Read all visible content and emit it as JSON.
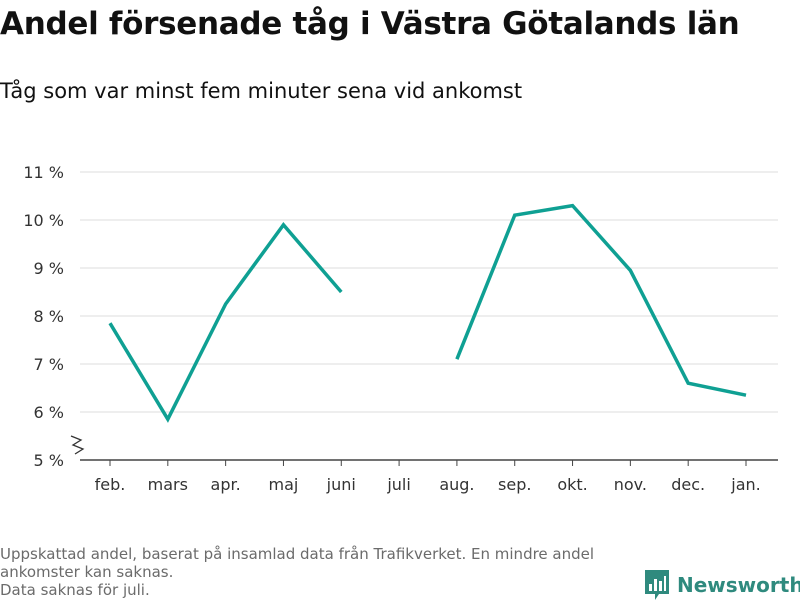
{
  "title": "Andel försenade tåg i Västra Götalands län",
  "subtitle": "Tåg som var minst fem minuter sena vid ankomst",
  "footnote": {
    "line1": "Uppskattad andel, baserat på insamlad data från Trafikverket. En mindre andel",
    "line2": "ankomster kan saknas.",
    "line3": "Data saknas för juli."
  },
  "brand": {
    "name": "Newsworthy",
    "color": "#2f8a7e"
  },
  "chart_data": {
    "type": "line",
    "title": "Andel försenade tåg i Västra Götalands län",
    "subtitle": "Tåg som var minst fem minuter sena vid ankomst",
    "xlabel": "",
    "ylabel": "",
    "categories": [
      "feb.",
      "mars",
      "apr.",
      "maj",
      "juni",
      "juli",
      "aug.",
      "sep.",
      "okt.",
      "nov.",
      "dec.",
      "jan."
    ],
    "series": [
      {
        "values": [
          7.85,
          5.85,
          8.25,
          9.9,
          8.5,
          null,
          7.1,
          10.1,
          10.3,
          8.95,
          6.6,
          6.35
        ],
        "color": "#0fa093"
      }
    ],
    "ylim": [
      5,
      11
    ],
    "yticks": [
      5,
      6,
      7,
      8,
      9,
      10,
      11
    ],
    "ytick_labels": [
      "5 %",
      "6 %",
      "7 %",
      "8 %",
      "9 %",
      "10 %",
      "11 %"
    ],
    "grid": true,
    "broken_axis": true
  }
}
